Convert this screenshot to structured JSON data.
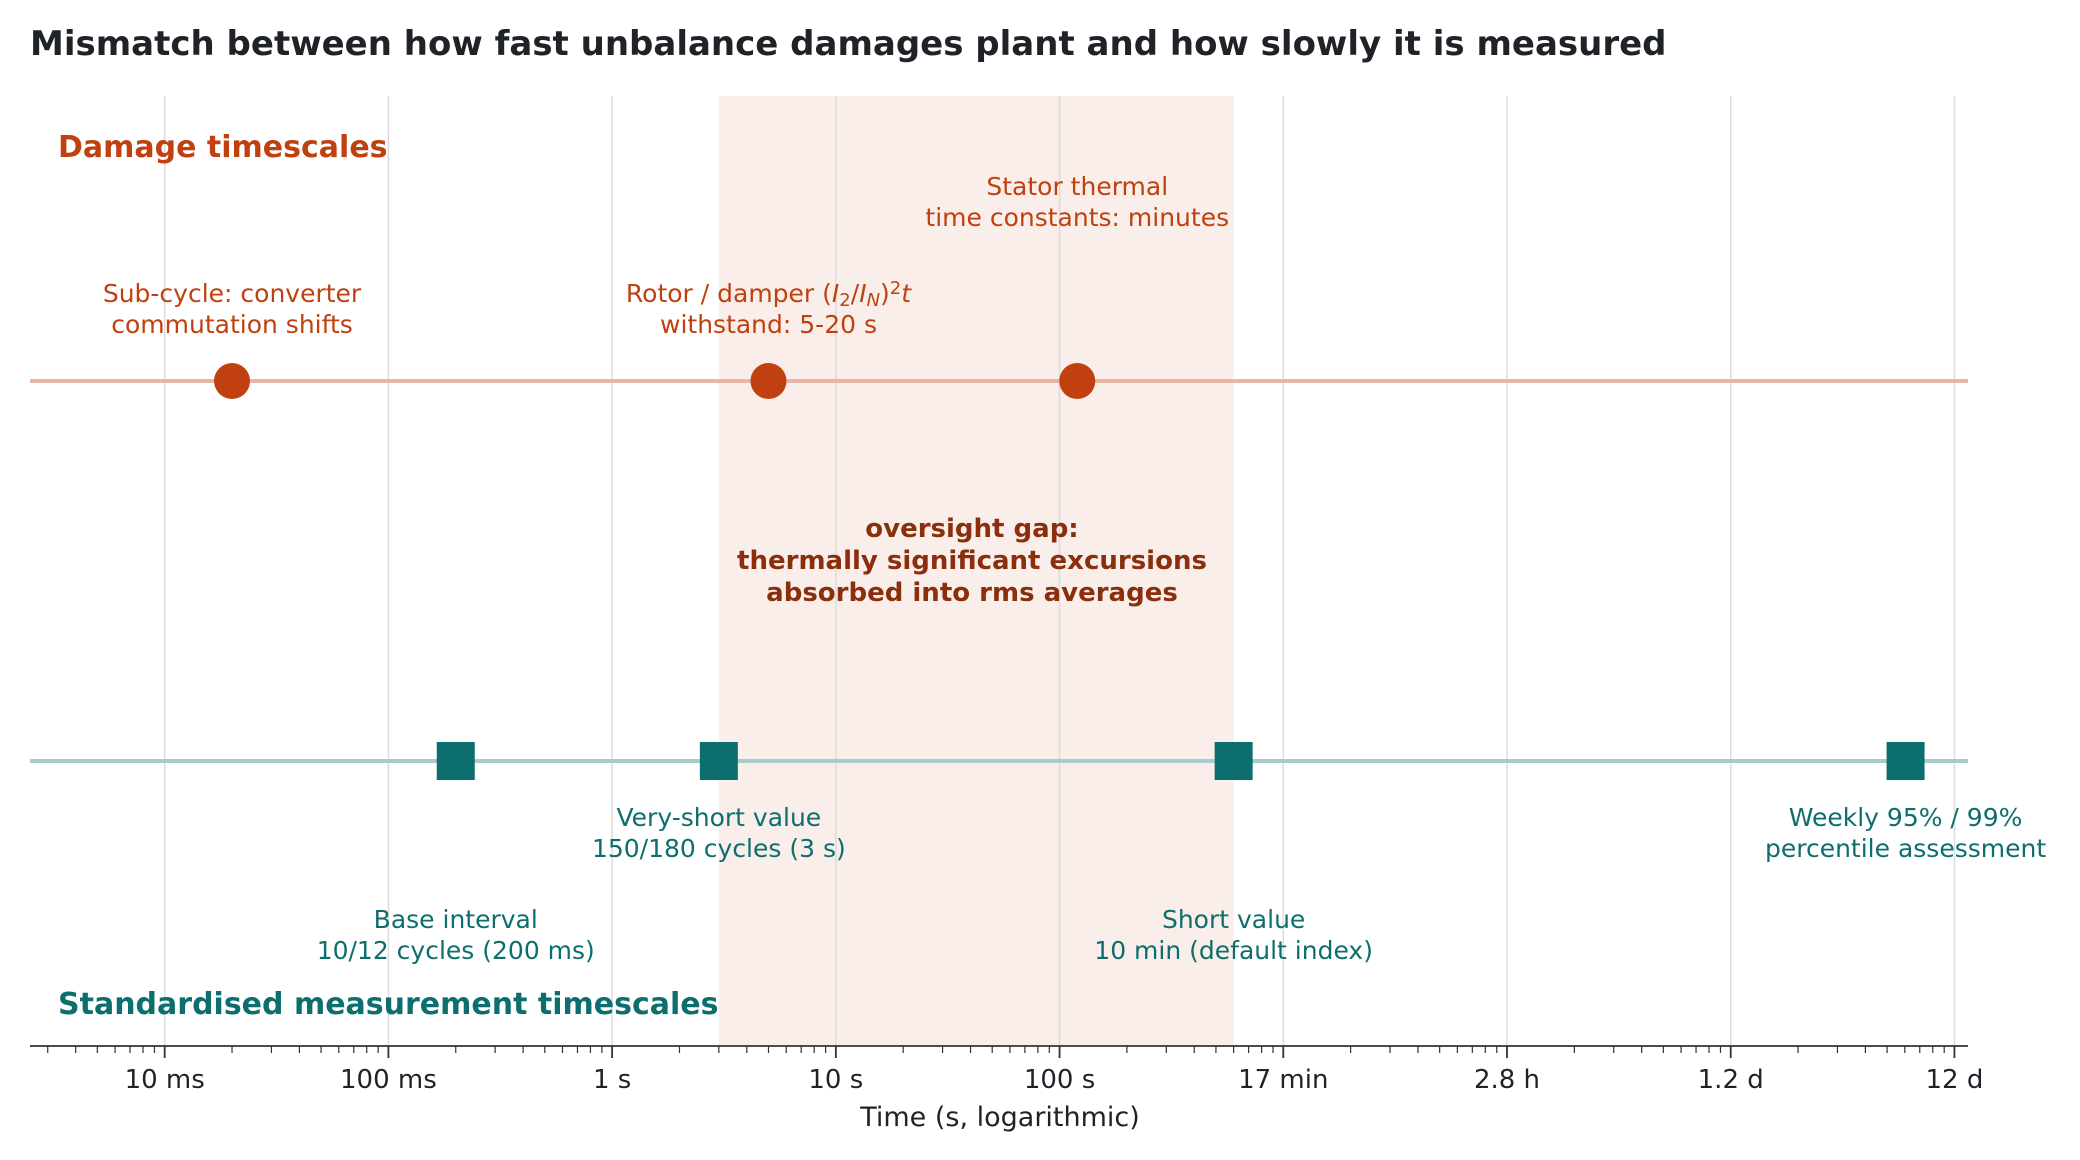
{
  "colors": {
    "damage": "#c0410f",
    "damage_line": "#e8b5a6",
    "measure": "#0d6e6e",
    "measure_line": "#a8cccb",
    "gap_fill": "#f9eeea",
    "gap_text": "#8a2e0c",
    "grid": "#dcdcdc",
    "axis": "#333333"
  },
  "chart_data": {
    "type": "scatter",
    "title": "Mismatch between how fast unbalance damages plant and how slowly it is measured",
    "xlabel": "Time (s, logarithmic)",
    "xscale": "log",
    "xlim_s": [
      0.0025,
      1150000
    ],
    "grid": "vertical",
    "xticks": [
      {
        "value_s": 0.01,
        "label": "10 ms"
      },
      {
        "value_s": 0.1,
        "label": "100 ms"
      },
      {
        "value_s": 1,
        "label": "1 s"
      },
      {
        "value_s": 10,
        "label": "10 s"
      },
      {
        "value_s": 100,
        "label": "100 s"
      },
      {
        "value_s": 1000,
        "label": "17 min"
      },
      {
        "value_s": 10000,
        "label": "2.8 h"
      },
      {
        "value_s": 100000,
        "label": "1.2 d"
      },
      {
        "value_s": 1000000,
        "label": "12 d"
      }
    ],
    "shaded_band": {
      "x_start_s": 3,
      "x_end_s": 600,
      "label_lines": [
        "oversight gap:",
        "thermally significant excursions",
        "absorbed into rms averages"
      ]
    },
    "series": [
      {
        "name": "Damage timescales",
        "marker": "circle",
        "points": [
          {
            "x_s": 0.02,
            "label_lines": [
              "Sub-cycle: converter",
              "commutation shifts"
            ],
            "label_pos": "above-low"
          },
          {
            "x_s": 5,
            "label_lines": [
              "Rotor / damper (I2/IN)²t",
              "withstand: 5-20 s"
            ],
            "label_pos": "above-low"
          },
          {
            "x_s": 120,
            "label_lines": [
              "Stator thermal",
              "time constants: minutes"
            ],
            "label_pos": "above-high"
          }
        ]
      },
      {
        "name": "Standardised measurement timescales",
        "marker": "square",
        "points": [
          {
            "x_s": 0.2,
            "label_lines": [
              "Base interval",
              "10/12 cycles (200 ms)"
            ],
            "label_pos": "below-far"
          },
          {
            "x_s": 3,
            "label_lines": [
              "Very-short value",
              "150/180 cycles (3 s)"
            ],
            "label_pos": "below-near"
          },
          {
            "x_s": 600,
            "label_lines": [
              "Short value",
              "10 min (default index)"
            ],
            "label_pos": "below-far"
          },
          {
            "x_s": 604800,
            "label_lines": [
              "Weekly 95% / 99%",
              "percentile assessment"
            ],
            "label_pos": "below-near"
          }
        ]
      }
    ]
  }
}
